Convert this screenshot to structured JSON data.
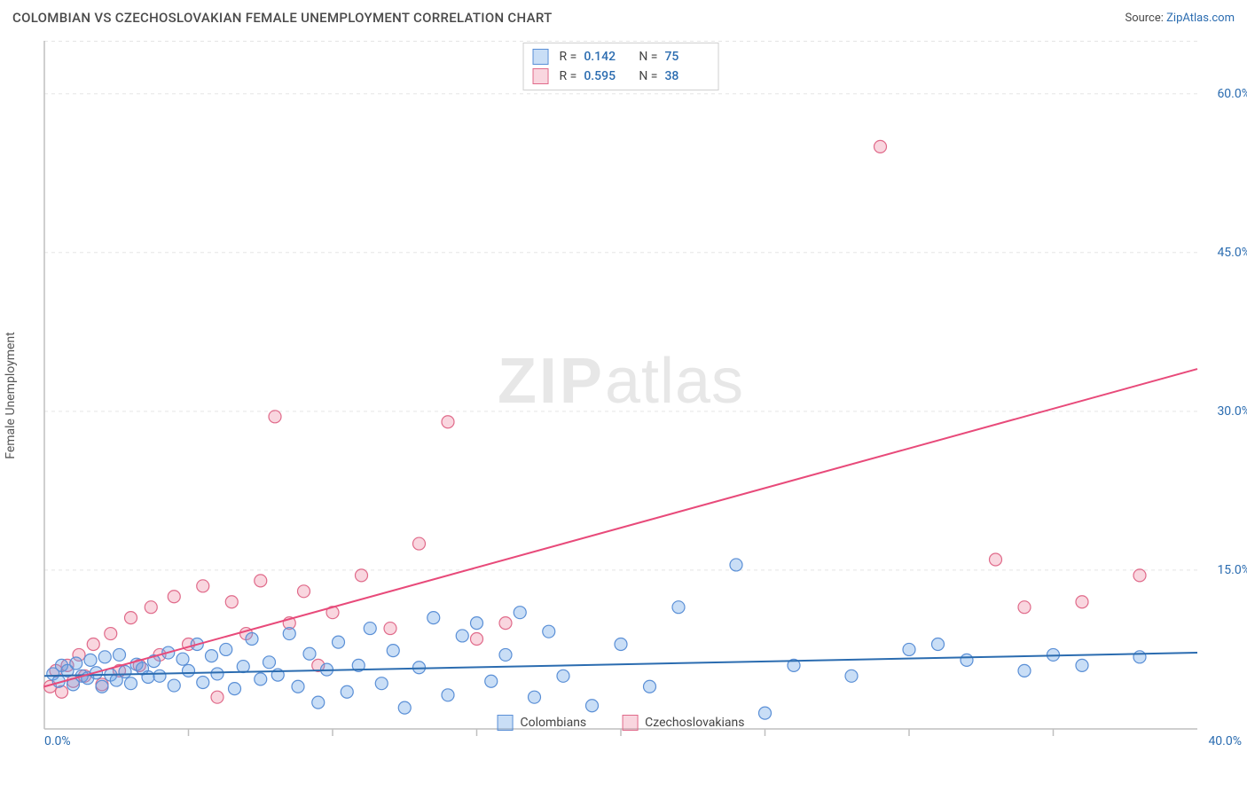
{
  "header": {
    "title": "COLOMBIAN VS CZECHOSLOVAKIAN FEMALE UNEMPLOYMENT CORRELATION CHART",
    "source_prefix": "Source: ",
    "source_name": "ZipAtlas.com"
  },
  "axes": {
    "y_label": "Female Unemployment",
    "xlim": [
      0,
      40
    ],
    "ylim": [
      0,
      65
    ],
    "x_origin_label": "0.0%",
    "x_max_label": "40.0%",
    "x_ticks": [
      5,
      10,
      15,
      20,
      25,
      30,
      35
    ],
    "y_ticks": [
      {
        "v": 15,
        "label": "15.0%"
      },
      {
        "v": 30,
        "label": "30.0%"
      },
      {
        "v": 45,
        "label": "45.0%"
      },
      {
        "v": 60,
        "label": "60.0%"
      }
    ],
    "grid_color": "#e5e5e5",
    "axis_color": "#bfbfbf",
    "tick_color": "#bfbfbf",
    "label_color": "#2b6cb0"
  },
  "watermark": {
    "zip": "ZIP",
    "atlas": "atlas"
  },
  "series": {
    "colombians": {
      "label": "Colombians",
      "fill": "rgba(100,160,230,0.35)",
      "stroke": "#5a8fd6",
      "line_color": "#2b6cb0",
      "marker_radius": 7,
      "r_label": "R =",
      "r_value": "0.142",
      "n_label": "N =",
      "n_value": "75",
      "trend": {
        "x1": 0,
        "y1": 5.0,
        "x2": 40,
        "y2": 7.2
      },
      "points": [
        [
          0.3,
          5.2
        ],
        [
          0.5,
          4.5
        ],
        [
          0.6,
          6.0
        ],
        [
          0.8,
          5.5
        ],
        [
          1.0,
          4.2
        ],
        [
          1.1,
          6.2
        ],
        [
          1.3,
          5.0
        ],
        [
          1.5,
          4.8
        ],
        [
          1.6,
          6.5
        ],
        [
          1.8,
          5.3
        ],
        [
          2.0,
          4.0
        ],
        [
          2.1,
          6.8
        ],
        [
          2.3,
          5.1
        ],
        [
          2.5,
          4.6
        ],
        [
          2.6,
          7.0
        ],
        [
          2.8,
          5.4
        ],
        [
          3.0,
          4.3
        ],
        [
          3.2,
          6.1
        ],
        [
          3.4,
          5.7
        ],
        [
          3.6,
          4.9
        ],
        [
          3.8,
          6.4
        ],
        [
          4.0,
          5.0
        ],
        [
          4.3,
          7.2
        ],
        [
          4.5,
          4.1
        ],
        [
          4.8,
          6.6
        ],
        [
          5.0,
          5.5
        ],
        [
          5.3,
          8.0
        ],
        [
          5.5,
          4.4
        ],
        [
          5.8,
          6.9
        ],
        [
          6.0,
          5.2
        ],
        [
          6.3,
          7.5
        ],
        [
          6.6,
          3.8
        ],
        [
          6.9,
          5.9
        ],
        [
          7.2,
          8.5
        ],
        [
          7.5,
          4.7
        ],
        [
          7.8,
          6.3
        ],
        [
          8.1,
          5.1
        ],
        [
          8.5,
          9.0
        ],
        [
          8.8,
          4.0
        ],
        [
          9.2,
          7.1
        ],
        [
          9.5,
          2.5
        ],
        [
          9.8,
          5.6
        ],
        [
          10.2,
          8.2
        ],
        [
          10.5,
          3.5
        ],
        [
          10.9,
          6.0
        ],
        [
          11.3,
          9.5
        ],
        [
          11.7,
          4.3
        ],
        [
          12.1,
          7.4
        ],
        [
          12.5,
          2.0
        ],
        [
          13.0,
          5.8
        ],
        [
          13.5,
          10.5
        ],
        [
          14.0,
          3.2
        ],
        [
          14.5,
          8.8
        ],
        [
          15.0,
          10.0
        ],
        [
          15.5,
          4.5
        ],
        [
          16.0,
          7.0
        ],
        [
          16.5,
          11.0
        ],
        [
          17.0,
          3.0
        ],
        [
          17.5,
          9.2
        ],
        [
          18.0,
          5.0
        ],
        [
          19.0,
          2.2
        ],
        [
          20.0,
          8.0
        ],
        [
          21.0,
          4.0
        ],
        [
          22.0,
          11.5
        ],
        [
          24.0,
          15.5
        ],
        [
          25.0,
          1.5
        ],
        [
          26.0,
          6.0
        ],
        [
          28.0,
          5.0
        ],
        [
          30.0,
          7.5
        ],
        [
          31.0,
          8.0
        ],
        [
          32.0,
          6.5
        ],
        [
          34.0,
          5.5
        ],
        [
          35.0,
          7.0
        ],
        [
          36.0,
          6.0
        ],
        [
          38.0,
          6.8
        ]
      ]
    },
    "czechoslovakians": {
      "label": "Czechoslovakians",
      "fill": "rgba(235,120,150,0.30)",
      "stroke": "#e06a8a",
      "line_color": "#e84a7a",
      "marker_radius": 7,
      "r_label": "R =",
      "r_value": "0.595",
      "n_label": "N =",
      "n_value": "38",
      "trend": {
        "x1": 0,
        "y1": 4.0,
        "x2": 40,
        "y2": 34.0
      },
      "points": [
        [
          0.2,
          4.0
        ],
        [
          0.4,
          5.5
        ],
        [
          0.6,
          3.5
        ],
        [
          0.8,
          6.0
        ],
        [
          1.0,
          4.5
        ],
        [
          1.2,
          7.0
        ],
        [
          1.4,
          5.0
        ],
        [
          1.7,
          8.0
        ],
        [
          2.0,
          4.2
        ],
        [
          2.3,
          9.0
        ],
        [
          2.6,
          5.5
        ],
        [
          3.0,
          10.5
        ],
        [
          3.3,
          6.0
        ],
        [
          3.7,
          11.5
        ],
        [
          4.0,
          7.0
        ],
        [
          4.5,
          12.5
        ],
        [
          5.0,
          8.0
        ],
        [
          5.5,
          13.5
        ],
        [
          6.0,
          3.0
        ],
        [
          6.5,
          12.0
        ],
        [
          7.0,
          9.0
        ],
        [
          7.5,
          14.0
        ],
        [
          8.0,
          29.5
        ],
        [
          8.5,
          10.0
        ],
        [
          9.0,
          13.0
        ],
        [
          9.5,
          6.0
        ],
        [
          10.0,
          11.0
        ],
        [
          11.0,
          14.5
        ],
        [
          12.0,
          9.5
        ],
        [
          13.0,
          17.5
        ],
        [
          14.0,
          29.0
        ],
        [
          15.0,
          8.5
        ],
        [
          16.0,
          10.0
        ],
        [
          29.0,
          55.0
        ],
        [
          33.0,
          16.0
        ],
        [
          34.0,
          11.5
        ],
        [
          36.0,
          12.0
        ],
        [
          38.0,
          14.5
        ]
      ]
    }
  },
  "background_color": "#ffffff"
}
